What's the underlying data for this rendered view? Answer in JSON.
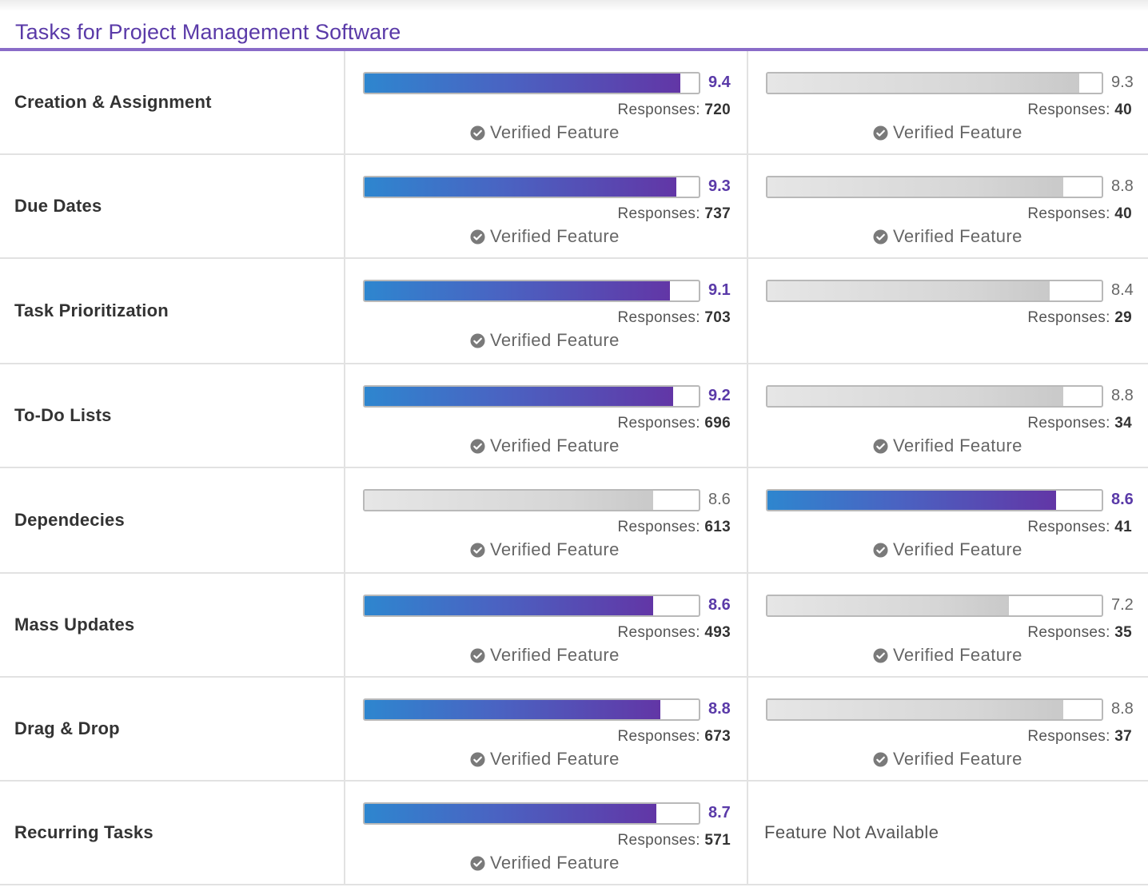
{
  "section": {
    "title": "Tasks for Project Management Software"
  },
  "labels": {
    "responses": "Responses:",
    "verified": "Verified Feature",
    "not_available": "Feature Not Available"
  },
  "colors": {
    "accent": "#5a3aa8",
    "bar_win_start": "#2e86cf",
    "bar_win_end": "#6236a6",
    "bar_lose": "#d6d6d6",
    "border": "#e2e2e2"
  },
  "icons": {
    "verified": "check-circle-icon"
  },
  "rows": [
    {
      "name": "Creation & Assignment",
      "a": {
        "score": "9.4",
        "responses": "720",
        "verified": true,
        "winner": true
      },
      "b": {
        "score": "9.3",
        "responses": "40",
        "verified": true,
        "winner": false
      }
    },
    {
      "name": "Due Dates",
      "a": {
        "score": "9.3",
        "responses": "737",
        "verified": true,
        "winner": true
      },
      "b": {
        "score": "8.8",
        "responses": "40",
        "verified": true,
        "winner": false
      }
    },
    {
      "name": "Task Prioritization",
      "a": {
        "score": "9.1",
        "responses": "703",
        "verified": true,
        "winner": true
      },
      "b": {
        "score": "8.4",
        "responses": "29",
        "verified": false,
        "winner": false
      }
    },
    {
      "name": "To-Do Lists",
      "a": {
        "score": "9.2",
        "responses": "696",
        "verified": true,
        "winner": true
      },
      "b": {
        "score": "8.8",
        "responses": "34",
        "verified": true,
        "winner": false
      }
    },
    {
      "name": "Dependecies",
      "a": {
        "score": "8.6",
        "responses": "613",
        "verified": true,
        "winner": false
      },
      "b": {
        "score": "8.6",
        "responses": "41",
        "verified": true,
        "winner": true
      }
    },
    {
      "name": "Mass Updates",
      "a": {
        "score": "8.6",
        "responses": "493",
        "verified": true,
        "winner": true
      },
      "b": {
        "score": "7.2",
        "responses": "35",
        "verified": true,
        "winner": false
      }
    },
    {
      "name": "Drag & Drop",
      "a": {
        "score": "8.8",
        "responses": "673",
        "verified": true,
        "winner": true
      },
      "b": {
        "score": "8.8",
        "responses": "37",
        "verified": true,
        "winner": false
      }
    },
    {
      "name": "Recurring Tasks",
      "a": {
        "score": "8.7",
        "responses": "571",
        "verified": true,
        "winner": true
      },
      "b": {
        "not_available": true
      }
    }
  ]
}
